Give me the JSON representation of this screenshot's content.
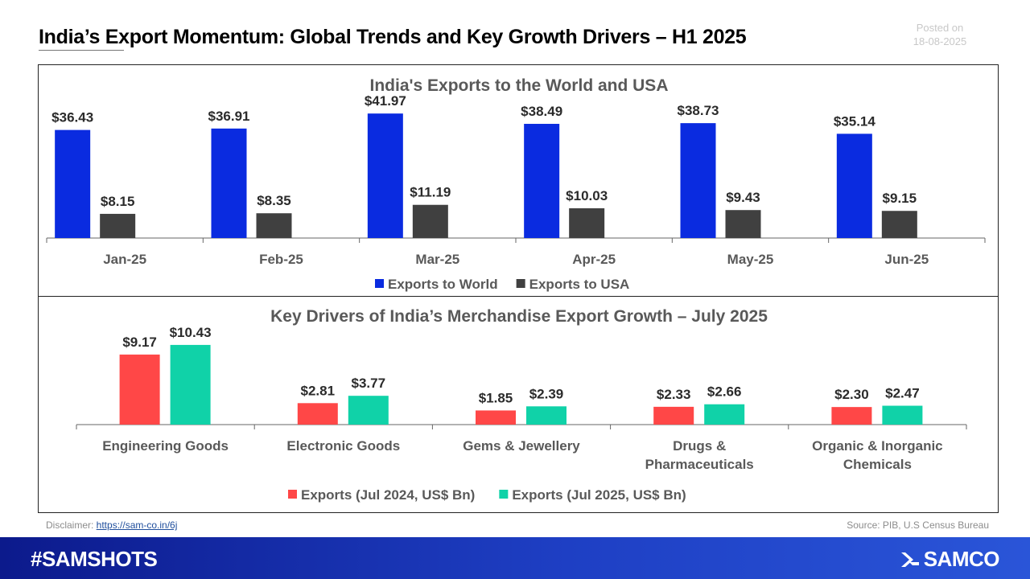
{
  "page": {
    "title": "India’s Export Momentum: Global Trends and Key Growth Drivers – H1 2025",
    "posted_label": "Posted on",
    "posted_date": "18-08-2025"
  },
  "footer": {
    "disclaimer_label": "Disclaimer: ",
    "disclaimer_link": "https://sam-co.in/6j",
    "source": "Source: PIB, U.S Census Bureau",
    "hashtag": "#SAMSHOTS",
    "brand": "SAMCO"
  },
  "chart_data": [
    {
      "type": "bar",
      "title": "India's Exports to the World and USA",
      "categories": [
        "Jan-25",
        "Feb-25",
        "Mar-25",
        "Apr-25",
        "May-25",
        "Jun-25"
      ],
      "series": [
        {
          "name": "Exports to World",
          "color": "#0a2be0",
          "values": [
            36.43,
            36.91,
            41.97,
            38.49,
            38.73,
            35.14
          ],
          "labels": [
            "$36.43",
            "$36.91",
            "$41.97",
            "$38.49",
            "$38.73",
            "$35.14"
          ]
        },
        {
          "name": "Exports to USA",
          "color": "#404040",
          "values": [
            8.15,
            8.35,
            11.19,
            10.03,
            9.43,
            9.15
          ],
          "labels": [
            "$8.15",
            "$8.35",
            "$11.19",
            "$10.03",
            "$9.43",
            "$9.15"
          ]
        }
      ],
      "xlabel": "",
      "ylabel": "",
      "ylim": [
        0,
        45
      ],
      "legend_position": "bottom"
    },
    {
      "type": "bar",
      "title": "Key Drivers of India’s Merchandise Export Growth – July 2025",
      "categories": [
        "Engineering Goods",
        "Electronic Goods",
        "Gems & Jewellery",
        "Drugs & Pharmaceuticals",
        "Organic & Inorganic Chemicals"
      ],
      "category_lines": [
        [
          "Engineering Goods"
        ],
        [
          "Electronic Goods"
        ],
        [
          "Gems & Jewellery"
        ],
        [
          "Drugs &",
          "Pharmaceuticals"
        ],
        [
          "Organic & Inorganic",
          "Chemicals"
        ]
      ],
      "series": [
        {
          "name": "Exports (Jul 2024, US$ Bn)",
          "color": "#ff4747",
          "values": [
            9.17,
            2.81,
            1.85,
            2.33,
            2.3
          ],
          "labels": [
            "$9.17",
            "$2.81",
            "$1.85",
            "$2.33",
            "$2.30"
          ]
        },
        {
          "name": "Exports (Jul 2025, US$ Bn)",
          "color": "#10d2a8",
          "values": [
            10.43,
            3.77,
            2.39,
            2.66,
            2.47
          ],
          "labels": [
            "$10.43",
            "$3.77",
            "$2.39",
            "$2.66",
            "$2.47"
          ]
        }
      ],
      "xlabel": "",
      "ylabel": "",
      "ylim": [
        0,
        12
      ],
      "legend_position": "bottom"
    }
  ]
}
